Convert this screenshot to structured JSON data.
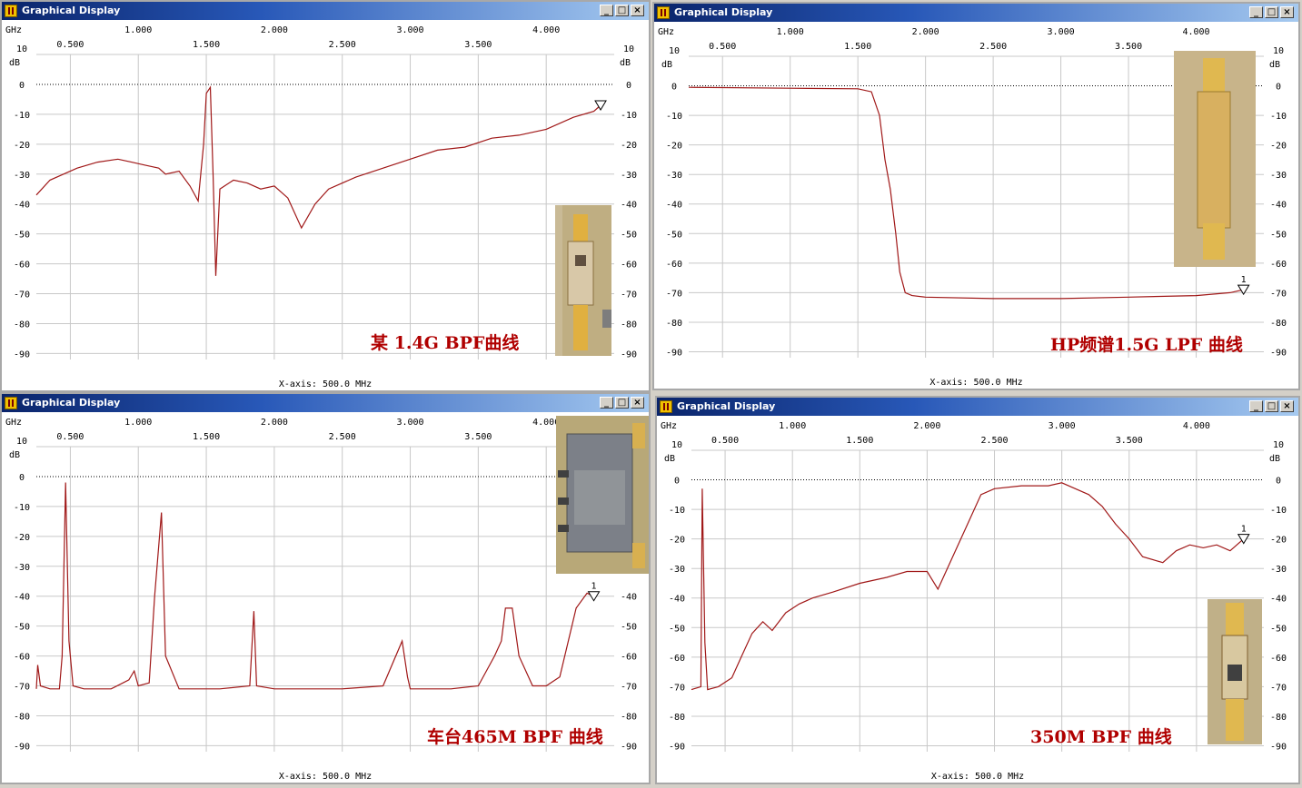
{
  "windows": [
    {
      "title": "Graphical Display",
      "unit_x": "GHz",
      "unit_y": "dB",
      "xaxis_label": "X-axis: 500.0 MHz",
      "annotation": "某 1.4G BPF曲线",
      "marker": ""
    },
    {
      "title": "Graphical Display",
      "unit_x": "GHz",
      "unit_y": "dB",
      "xaxis_label": "X-axis: 500.0 MHz",
      "annotation": "HP频谱1.5G LPF 曲线",
      "marker": "1"
    },
    {
      "title": "Graphical Display",
      "unit_x": "GHz",
      "unit_y": "dB",
      "xaxis_label": "X-axis: 500.0 MHz",
      "annotation": "车台465M BPF 曲线",
      "marker": "1"
    },
    {
      "title": "Graphical Display",
      "unit_x": "GHz",
      "unit_y": "dB",
      "xaxis_label": "X-axis: 500.0 MHz",
      "annotation": "350M BPF 曲线",
      "marker": "1"
    }
  ],
  "title_buttons": {
    "minimize": "_",
    "maximize": "□",
    "close": "×"
  },
  "colors": {
    "trace": "#a01818",
    "grid": "#c8c8c8",
    "annotation": "#b00000",
    "titlebar": "#0a246a"
  },
  "chart_data": [
    {
      "type": "line",
      "xlim": [
        0.25,
        4.5
      ],
      "ylim": [
        -92,
        10
      ],
      "x_ticks_upper": [
        "1.000",
        "2.000",
        "3.000",
        "4.000"
      ],
      "x_ticks_lower": [
        "0.500",
        "1.500",
        "2.500",
        "3.500"
      ],
      "y_ticks": [
        "10",
        "0",
        "-10",
        "-20",
        "-30",
        "-40",
        "-50",
        "-60",
        "-70",
        "-80",
        "-90"
      ],
      "series": [
        {
          "x": [
            0.25,
            0.35,
            0.45,
            0.55,
            0.7,
            0.85,
            0.95,
            1.05,
            1.15,
            1.2,
            1.3,
            1.38,
            1.44,
            1.48,
            1.5,
            1.53,
            1.55,
            1.57,
            1.6,
            1.7,
            1.8,
            1.9,
            2.0,
            2.1,
            2.2,
            2.3,
            2.4,
            2.6,
            2.8,
            3.0,
            3.2,
            3.4,
            3.6,
            3.8,
            4.0,
            4.2,
            4.35,
            4.4
          ],
          "y": [
            -37,
            -32,
            -30,
            -28,
            -26,
            -25,
            -26,
            -27,
            -28,
            -30,
            -29,
            -34,
            -39,
            -20,
            -3,
            -1,
            -30,
            -64,
            -35,
            -32,
            -33,
            -35,
            -34,
            -38,
            -48,
            -40,
            -35,
            -31,
            -28,
            -25,
            -22,
            -21,
            -18,
            -17,
            -15,
            -11,
            -9,
            -7
          ]
        }
      ]
    },
    {
      "type": "line",
      "xlim": [
        0.25,
        4.5
      ],
      "ylim": [
        -92,
        10
      ],
      "x_ticks_upper": [
        "1.000",
        "2.000",
        "3.000",
        "4.000"
      ],
      "x_ticks_lower": [
        "0.500",
        "1.500",
        "2.500",
        "3.500"
      ],
      "y_ticks": [
        "10",
        "0",
        "-10",
        "-20",
        "-30",
        "-40",
        "-50",
        "-60",
        "-70",
        "-80",
        "-90"
      ],
      "series": [
        {
          "x": [
            0.25,
            0.5,
            1.0,
            1.5,
            1.6,
            1.66,
            1.7,
            1.74,
            1.78,
            1.81,
            1.85,
            1.9,
            2.0,
            2.5,
            3.0,
            3.5,
            4.0,
            4.25,
            4.35
          ],
          "y": [
            -0.5,
            -0.6,
            -0.8,
            -1,
            -2,
            -10,
            -25,
            -35,
            -50,
            -63,
            -70,
            -71,
            -71.5,
            -72,
            -72,
            -71.5,
            -71,
            -70,
            -69
          ]
        }
      ]
    },
    {
      "type": "line",
      "xlim": [
        0.25,
        4.5
      ],
      "ylim": [
        -92,
        10
      ],
      "x_ticks_upper": [
        "1.000",
        "2.000",
        "3.000",
        "4.000"
      ],
      "x_ticks_lower": [
        "0.500",
        "1.500",
        "2.500",
        "3.500"
      ],
      "y_ticks": [
        "10",
        "0",
        "-10",
        "-20",
        "-30",
        "-40",
        "-50",
        "-60",
        "-70",
        "-80",
        "-90"
      ],
      "series": [
        {
          "x": [
            0.25,
            0.26,
            0.28,
            0.35,
            0.42,
            0.44,
            0.465,
            0.49,
            0.52,
            0.6,
            0.8,
            0.93,
            0.97,
            1.0,
            1.08,
            1.12,
            1.17,
            1.2,
            1.3,
            1.6,
            1.82,
            1.85,
            1.87,
            2.0,
            2.5,
            2.8,
            2.94,
            2.98,
            3.0,
            3.1,
            3.3,
            3.5,
            3.62,
            3.67,
            3.7,
            3.75,
            3.8,
            3.9,
            4.0,
            4.1,
            4.22,
            4.3,
            4.35
          ],
          "y": [
            -71,
            -63,
            -70,
            -71,
            -71,
            -60,
            -2,
            -55,
            -70,
            -71,
            -71,
            -68,
            -65,
            -70,
            -69,
            -40,
            -12,
            -60,
            -71,
            -71,
            -70,
            -45,
            -70,
            -71,
            -71,
            -70,
            -55,
            -67,
            -71,
            -71,
            -71,
            -70,
            -60,
            -55,
            -44,
            -44,
            -60,
            -70,
            -70,
            -67,
            -44,
            -39,
            -40
          ]
        }
      ]
    },
    {
      "type": "line",
      "xlim": [
        0.25,
        4.5
      ],
      "ylim": [
        -92,
        10
      ],
      "x_ticks_upper": [
        "1.000",
        "2.000",
        "3.000",
        "4.000"
      ],
      "x_ticks_lower": [
        "0.500",
        "1.500",
        "2.500",
        "3.500"
      ],
      "y_ticks": [
        "10",
        "0",
        "-10",
        "-20",
        "-30",
        "-40",
        "-50",
        "-60",
        "-70",
        "-80",
        "-90"
      ],
      "series": [
        {
          "x": [
            0.25,
            0.32,
            0.33,
            0.35,
            0.37,
            0.45,
            0.55,
            0.62,
            0.7,
            0.78,
            0.85,
            0.95,
            1.05,
            1.15,
            1.3,
            1.5,
            1.7,
            1.85,
            2.0,
            2.08,
            2.2,
            2.3,
            2.4,
            2.5,
            2.7,
            2.9,
            3.0,
            3.1,
            3.2,
            3.3,
            3.4,
            3.5,
            3.6,
            3.75,
            3.85,
            3.95,
            4.05,
            4.15,
            4.25,
            4.35
          ],
          "y": [
            -71,
            -70,
            -3,
            -55,
            -71,
            -70,
            -67,
            -60,
            -52,
            -48,
            -51,
            -45,
            -42,
            -40,
            -38,
            -35,
            -33,
            -31,
            -31,
            -37,
            -25,
            -15,
            -5,
            -3,
            -2,
            -2,
            -1,
            -3,
            -5,
            -9,
            -15,
            -20,
            -26,
            -28,
            -24,
            -22,
            -23,
            -22,
            -24,
            -20
          ]
        }
      ]
    }
  ]
}
